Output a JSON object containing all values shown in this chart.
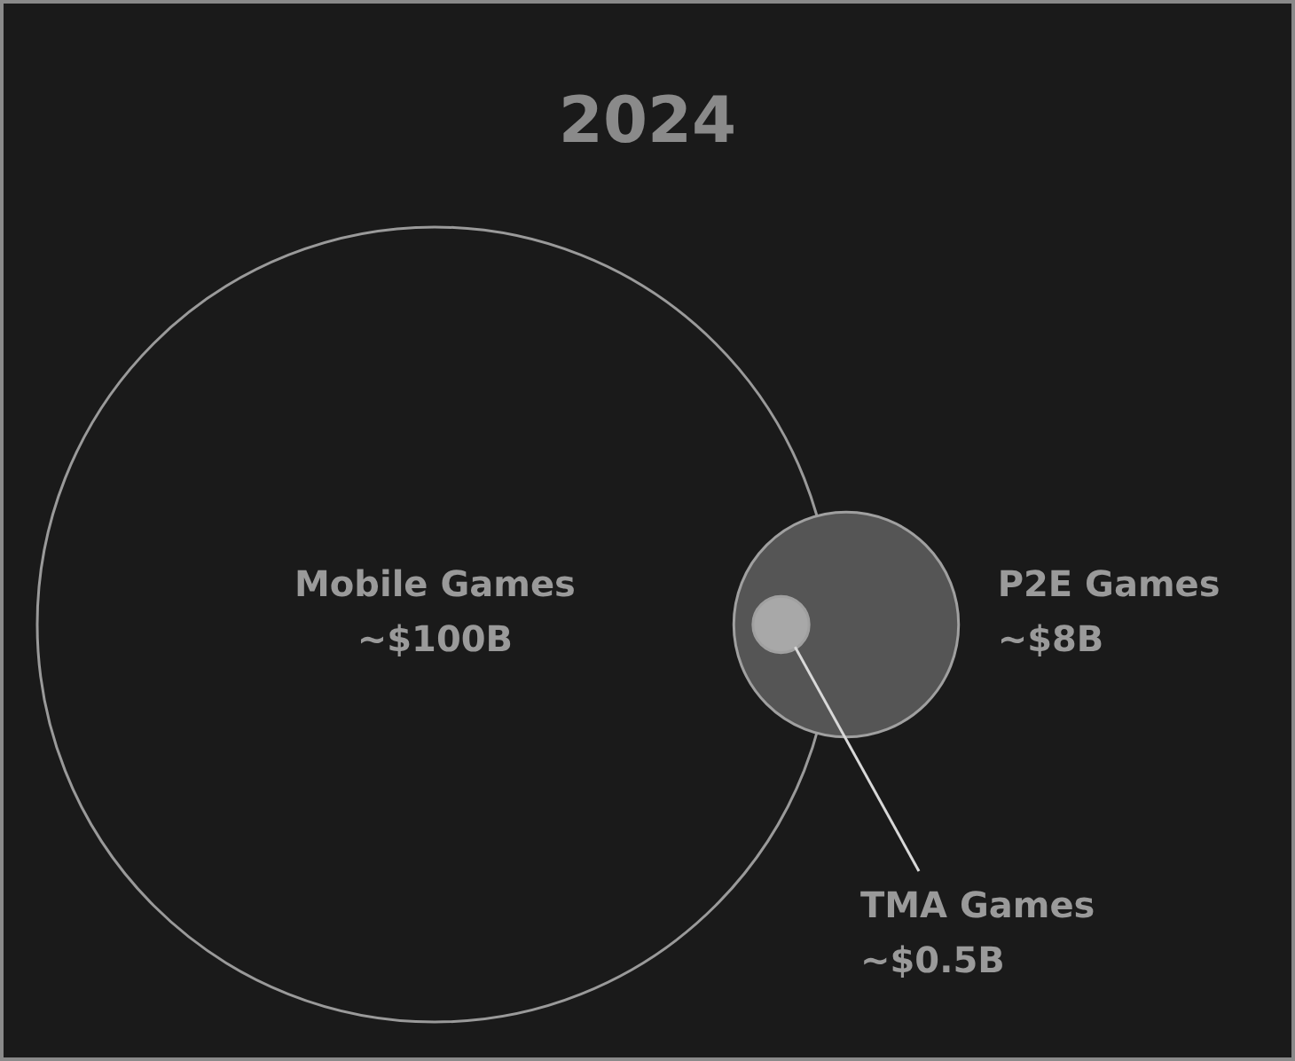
{
  "chart_data": {
    "type": "other",
    "title": "2024",
    "categories": [
      "Mobile Games",
      "P2E Games",
      "TMA Games"
    ],
    "values": [
      100,
      8,
      0.5
    ],
    "value_labels": [
      "~$100B",
      "~$8B",
      "~$0.5B"
    ],
    "colors": [
      "#1a1a1a",
      "#555555",
      "#a8a8a8"
    ]
  }
}
